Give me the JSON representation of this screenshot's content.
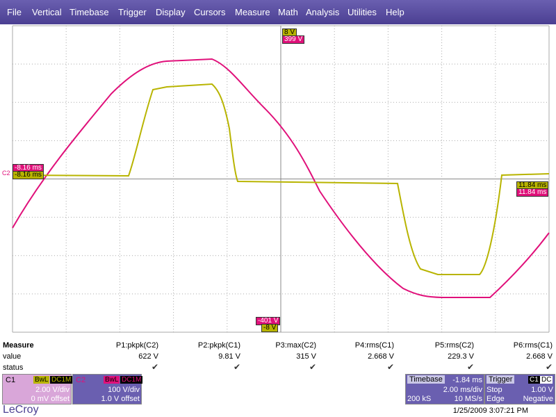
{
  "menu": [
    "File",
    "Vertical",
    "Timebase",
    "Trigger",
    "Display",
    "Cursors",
    "Measure",
    "Math",
    "Analysis",
    "Utilities",
    "Help"
  ],
  "markers": {
    "top_c1": "8 V",
    "top_c2": "399 V",
    "bottom_c2": "-401 V",
    "bottom_c1": "-8 V",
    "left_c2": "-8.16 ms",
    "left_c1": "-8.16 ms",
    "left_channel": "C2",
    "right_c1": "11.84 ms",
    "right_c2": "11.84 ms"
  },
  "measure": {
    "title": "Measure",
    "row_labels": [
      "value",
      "status"
    ],
    "columns": [
      {
        "name": "P1:pkpk(C2)",
        "value": "622 V"
      },
      {
        "name": "P2:pkpk(C1)",
        "value": "9.81 V"
      },
      {
        "name": "P3:max(C2)",
        "value": "315 V"
      },
      {
        "name": "P4:rms(C1)",
        "value": "2.668 V"
      },
      {
        "name": "P5:rms(C2)",
        "value": "229.3 V"
      },
      {
        "name": "P6:rms(C1)",
        "value": "2.668 V"
      }
    ]
  },
  "channels": [
    {
      "name": "C1",
      "bw": "BwL",
      "coupling": "DC1M",
      "scale": "2.00 V/div",
      "offset": "0 mV offset"
    },
    {
      "name": "C2",
      "bw": "BwL",
      "coupling": "DC1M",
      "scale": "100 V/div",
      "offset": "1.0 V offset"
    }
  ],
  "timebase": {
    "title": "Timebase",
    "delay": "-1.84 ms",
    "scale": "2.00 ms/div",
    "samples": "200 kS",
    "rate": "10 MS/s"
  },
  "trigger": {
    "title": "Trigger",
    "source": "C1",
    "coupling": "DC",
    "mode": "Stop",
    "level": "1.00 V",
    "type": "Edge",
    "slope": "Negative"
  },
  "footer": {
    "brand": "LeCroy",
    "timestamp": "1/25/2009 3:07:21 PM"
  }
}
